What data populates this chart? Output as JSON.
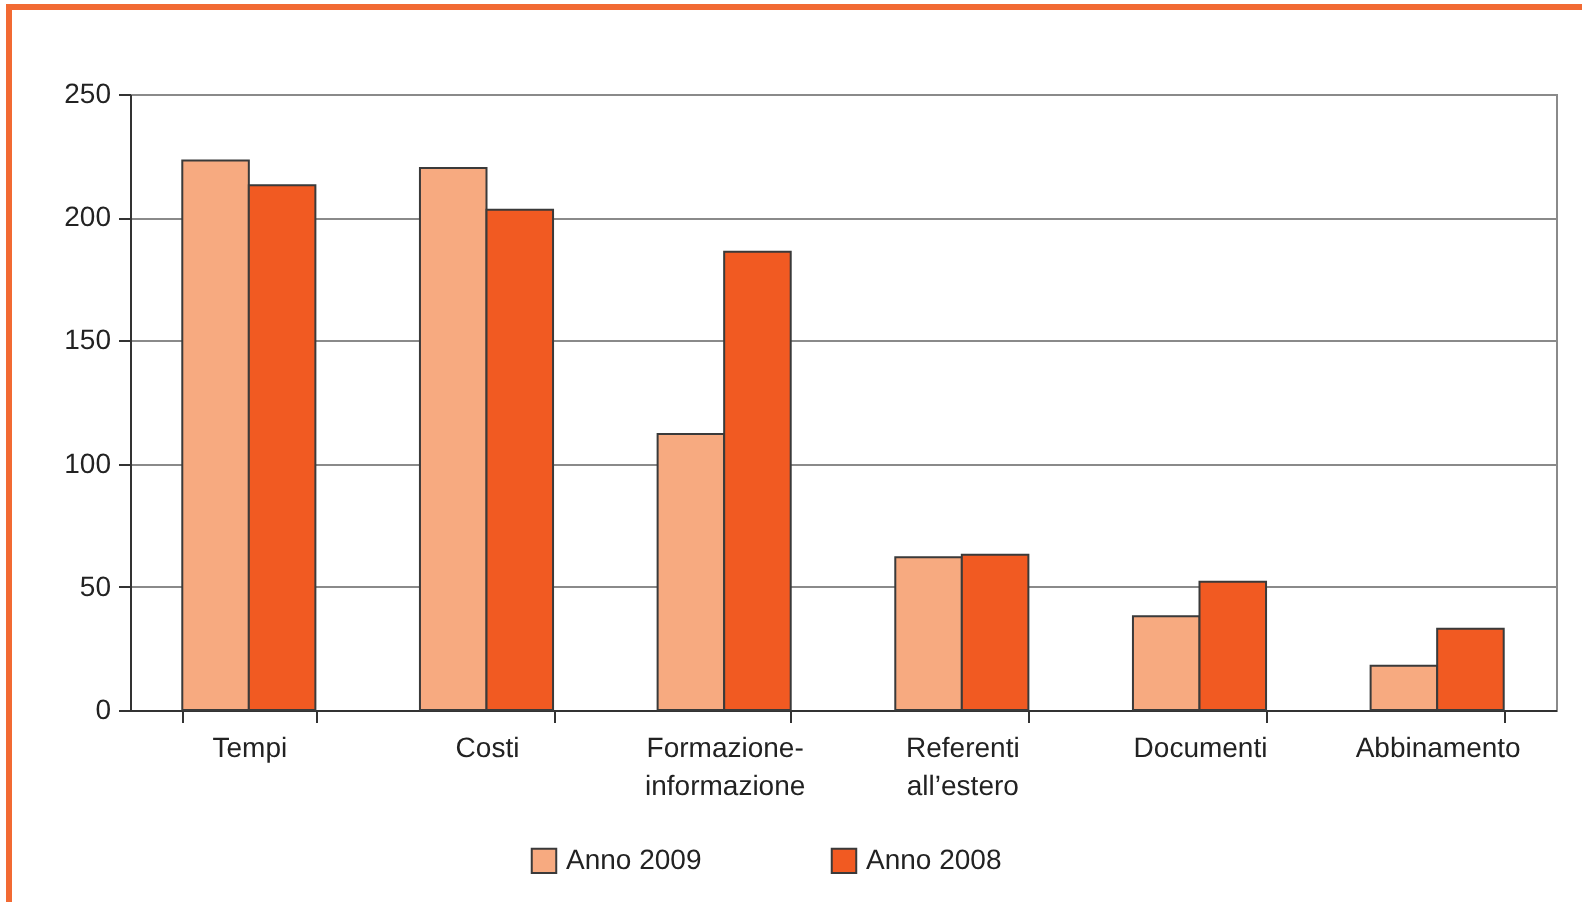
{
  "chart_data": {
    "type": "bar",
    "categories": [
      "Tempi",
      "Costi",
      "Formazione-informazione",
      "Referenti all’estero",
      "Documenti",
      "Abbinamento"
    ],
    "series": [
      {
        "name": "Anno 2009",
        "color": "#f7aa80",
        "values": [
          223,
          220,
          112,
          62,
          38,
          18
        ]
      },
      {
        "name": "Anno 2008",
        "color": "#f15a22",
        "values": [
          213,
          203,
          186,
          63,
          52,
          33
        ]
      }
    ],
    "ylim": [
      0,
      250
    ],
    "yticks": [
      0,
      50,
      100,
      150,
      200,
      250
    ],
    "grid": "y",
    "legend": "bottom"
  }
}
